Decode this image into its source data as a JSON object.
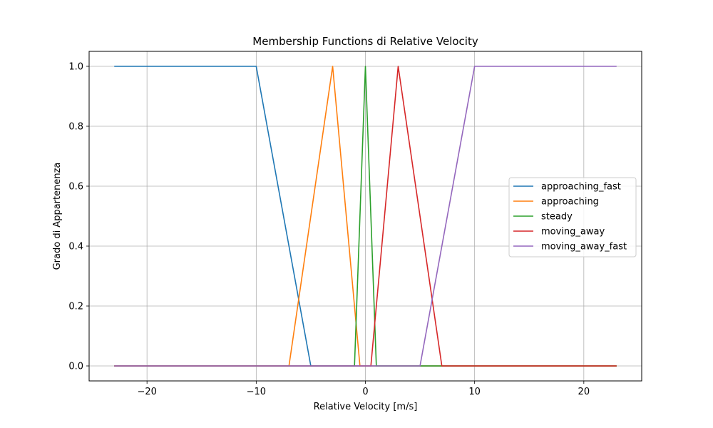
{
  "chart_data": {
    "type": "line",
    "title": "Membership Functions di Relative Velocity",
    "xlabel": "Relative Velocity [m/s]",
    "ylabel": "Grado di Appartenenza",
    "xlim": [
      -25.3,
      25.3
    ],
    "ylim": [
      -0.05,
      1.05
    ],
    "xticks": [
      -20,
      -10,
      0,
      10,
      20
    ],
    "xtick_labels": [
      "−20",
      "−10",
      "0",
      "10",
      "20"
    ],
    "yticks": [
      0.0,
      0.2,
      0.4,
      0.6,
      0.8,
      1.0
    ],
    "ytick_labels": [
      "0.0",
      "0.2",
      "0.4",
      "0.6",
      "0.8",
      "1.0"
    ],
    "grid": true,
    "legend_position": "center-right",
    "series": [
      {
        "name": "approaching_fast",
        "color": "#1f77b4",
        "x": [
          -23,
          -10,
          -5,
          23
        ],
        "y": [
          1,
          1,
          0,
          0
        ]
      },
      {
        "name": "approaching",
        "color": "#ff7f0e",
        "x": [
          -23,
          -7,
          -3,
          -0.5,
          23
        ],
        "y": [
          0,
          0,
          1,
          0,
          0
        ]
      },
      {
        "name": "steady",
        "color": "#2ca02c",
        "x": [
          -23,
          -1,
          0,
          1,
          23
        ],
        "y": [
          0,
          0,
          1,
          0,
          0
        ]
      },
      {
        "name": "moving_away",
        "color": "#d62728",
        "x": [
          -23,
          0.5,
          3,
          7,
          23
        ],
        "y": [
          0,
          0,
          1,
          0,
          0
        ]
      },
      {
        "name": "moving_away_fast",
        "color": "#9467bd",
        "x": [
          -23,
          5,
          10,
          23
        ],
        "y": [
          0,
          0,
          1,
          1
        ]
      }
    ]
  }
}
